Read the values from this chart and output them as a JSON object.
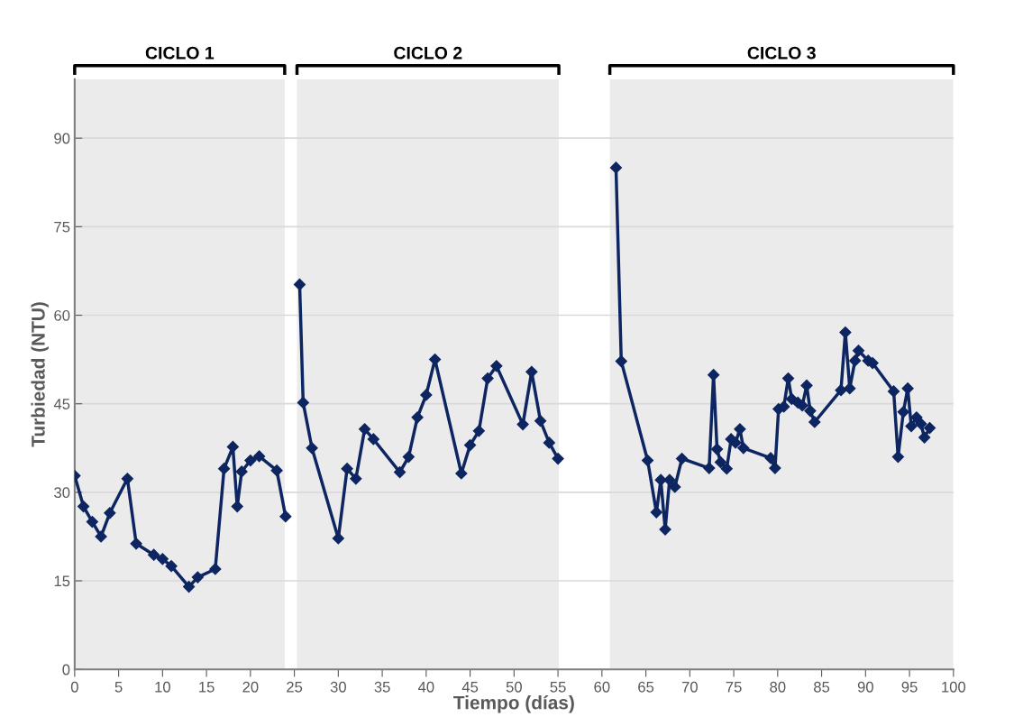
{
  "chart_data": {
    "type": "line",
    "xlabel": "Tiempo (días)",
    "ylabel": "Turbiedad (NTU)",
    "xlim": [
      0,
      100
    ],
    "xticks": [
      0,
      5,
      10,
      15,
      20,
      25,
      30,
      35,
      40,
      45,
      50,
      55,
      60,
      65,
      70,
      75,
      80,
      85,
      90,
      95,
      100
    ],
    "ylim": [
      0,
      100
    ],
    "yticks": [
      0,
      15,
      30,
      45,
      60,
      75,
      90
    ],
    "grid": "y",
    "marker": "diamond",
    "line_style": "solid",
    "bands": [
      {
        "axis": "x",
        "from": 0,
        "to": 23.9,
        "label": "CICLO 1",
        "color": "#ebebeb"
      },
      {
        "axis": "x",
        "from": 25.3,
        "to": 55.1,
        "label": "CICLO 2",
        "color": "#ebebeb"
      },
      {
        "axis": "x",
        "from": 60.9,
        "to": 100,
        "label": "CICLO 3",
        "color": "#ebebeb"
      }
    ],
    "series": [
      {
        "color": "#0d2560",
        "x": [
          0,
          1,
          2,
          3,
          4,
          6,
          7,
          9,
          10,
          11,
          13,
          14,
          16,
          17,
          18,
          18.5,
          19,
          20,
          21,
          23,
          24
        ],
        "values": [
          32.8,
          27.6,
          25,
          22.5,
          26.5,
          32.3,
          21.3,
          19.4,
          18.7,
          17.5,
          14,
          15.6,
          17,
          34,
          37.7,
          27.6,
          33.5,
          35.4,
          36.1,
          33.7,
          25.9
        ]
      },
      {
        "color": "#0d2560",
        "x": [
          25.6,
          26,
          27,
          30,
          31,
          32,
          33,
          34,
          37,
          38,
          39,
          40,
          41,
          44,
          45,
          46,
          47,
          48,
          51,
          52,
          53,
          54,
          55
        ],
        "values": [
          65.2,
          45.2,
          37.5,
          22.2,
          34,
          32.3,
          40.7,
          39,
          33.4,
          36,
          42.7,
          46.5,
          52.5,
          33.2,
          38,
          40.4,
          49.3,
          51.4,
          41.5,
          50.4,
          42.1,
          38.4,
          35.7
        ]
      },
      {
        "color": "#0d2560",
        "x": [
          61.6,
          62.2,
          65.2,
          66.2,
          66.7,
          67.2,
          67.7,
          68.3,
          69.1,
          72.2,
          72.7,
          73.1,
          73.5,
          74.2,
          74.7,
          75.2,
          75.7,
          76.1,
          79.2,
          79.7,
          80.1,
          80.7,
          81.2,
          81.6,
          82.3,
          82.8,
          83.3,
          83.7,
          84.2,
          87.2,
          87.7,
          88.2,
          88.8,
          89.2,
          90.3,
          90.8,
          93.2,
          93.7,
          94.3,
          94.8,
          95.2,
          95.8,
          96.3,
          96.7,
          97.3
        ],
        "values": [
          85,
          52.2,
          35.4,
          26.6,
          32.1,
          23.7,
          32.1,
          30.9,
          35.7,
          34.1,
          49.9,
          37.3,
          35.1,
          34,
          39,
          38.4,
          40.7,
          37.5,
          35.8,
          34.1,
          44.1,
          44.5,
          49.3,
          45.8,
          45.2,
          44.7,
          48.1,
          43.8,
          41.9,
          47.3,
          57.1,
          47.6,
          52.3,
          54,
          52.3,
          51.9,
          47.1,
          36,
          43.6,
          47.6,
          41.2,
          42.7,
          41.6,
          39.3,
          40.9
        ]
      }
    ]
  }
}
